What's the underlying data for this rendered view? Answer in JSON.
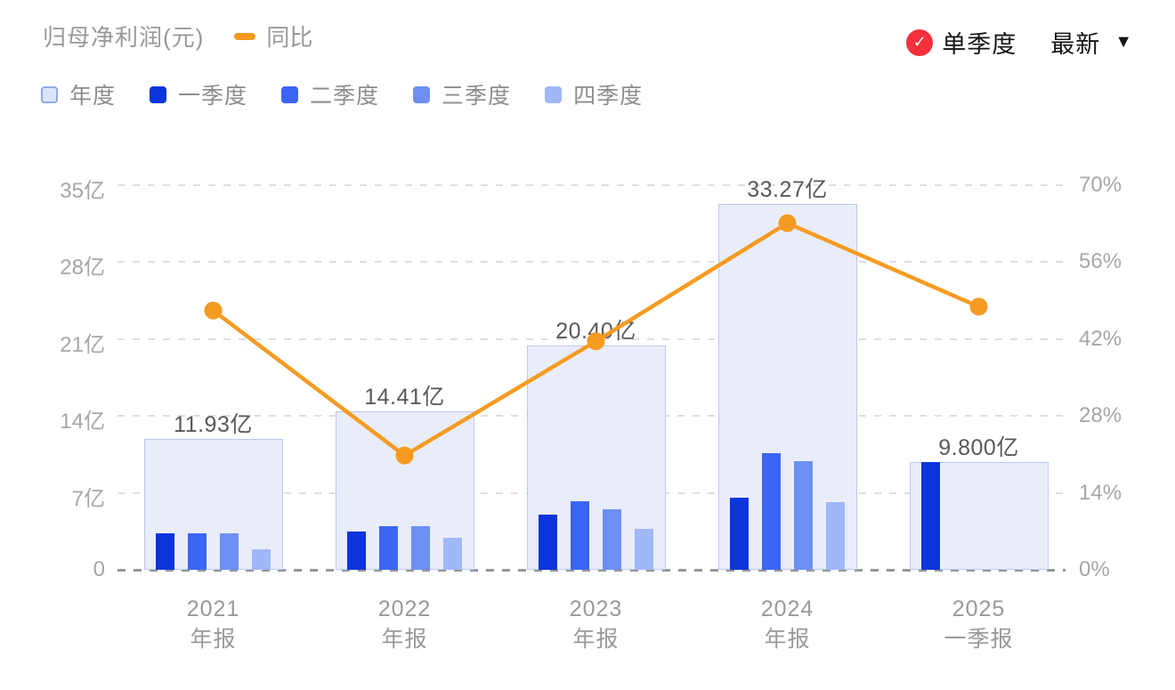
{
  "header": {
    "title": "归母净利润(元)",
    "line_legend_label": "同比",
    "line_color": "#f59b22",
    "quarter_toggle_label": "单季度",
    "check_color": "#f4303c",
    "latest_label": "最新"
  },
  "legend": {
    "items": [
      {
        "label": "年度",
        "color": "#dbe4fa",
        "border": "#8fabea"
      },
      {
        "label": "一季度",
        "color": "#0b35db",
        "border": "#0b35db"
      },
      {
        "label": "二季度",
        "color": "#3b66f5",
        "border": "#3b66f5"
      },
      {
        "label": "三季度",
        "color": "#6e8ff3",
        "border": "#6e8ff3"
      },
      {
        "label": "四季度",
        "color": "#9fb8f7",
        "border": "#9fb8f7"
      }
    ]
  },
  "chart_data": {
    "type": "bar",
    "categories": [
      {
        "line1": "2021",
        "line2": "年报"
      },
      {
        "line1": "2022",
        "line2": "年报"
      },
      {
        "line1": "2023",
        "line2": "年报"
      },
      {
        "line1": "2024",
        "line2": "年报"
      },
      {
        "line1": "2025",
        "line2": "一季报"
      }
    ],
    "series": [
      {
        "name": "年度",
        "role": "annual",
        "color": "#e9edfa",
        "border": "#bcc8f0",
        "values": [
          11.93,
          14.41,
          20.4,
          33.27,
          9.8
        ],
        "labels": [
          "11.93亿",
          "14.41亿",
          "20.40亿",
          "33.27亿",
          "9.800亿"
        ]
      },
      {
        "name": "一季度",
        "role": "quarter",
        "color": "#0b35db",
        "values": [
          3.35,
          3.5,
          5.0,
          6.6,
          9.8
        ]
      },
      {
        "name": "二季度",
        "role": "quarter",
        "color": "#3b66f5",
        "values": [
          3.35,
          4.0,
          6.2,
          10.6,
          null
        ]
      },
      {
        "name": "三季度",
        "role": "quarter",
        "color": "#6e8ff3",
        "values": [
          3.35,
          4.0,
          5.5,
          9.9,
          null
        ]
      },
      {
        "name": "四季度",
        "role": "quarter",
        "color": "#9fb8f7",
        "values": [
          1.88,
          2.91,
          3.7,
          6.17,
          null
        ]
      }
    ],
    "line_series": {
      "name": "同比",
      "color": "#f59b22",
      "unit": "%",
      "values": [
        47.2,
        20.8,
        41.6,
        63.1,
        47.9
      ]
    },
    "y_left": {
      "title": "亿",
      "min": 0,
      "max": 35,
      "ticks": [
        "35亿",
        "28亿",
        "21亿",
        "14亿",
        "7亿",
        "0"
      ]
    },
    "y_right": {
      "title": "%",
      "min": 0,
      "max": 70,
      "ticks": [
        "70%",
        "56%",
        "42%",
        "28%",
        "14%",
        "0%"
      ]
    },
    "grid": "dashed-horizontal",
    "legend_position": "top-left"
  }
}
